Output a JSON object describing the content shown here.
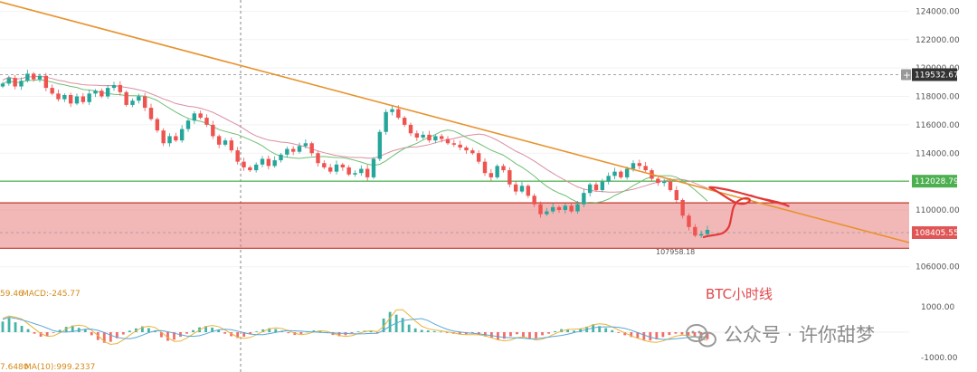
{
  "chart_data": {
    "type": "candlestick",
    "title": "BTC小时线",
    "watermark": "公众号 · 许你甜梦",
    "yaxis": {
      "ticks": [
        "124000.00",
        "122000.00",
        "120000.00",
        "118000.00",
        "116000.00",
        "114000.00",
        "110000.00",
        "106000.00"
      ],
      "tick_values": [
        124000,
        122000,
        120000,
        118000,
        116000,
        114000,
        110000,
        106000
      ],
      "range": [
        105600,
        124600
      ]
    },
    "price_tags": [
      {
        "label": "119532.67",
        "value": 119532.67,
        "color": "#333333"
      },
      {
        "label": "112028.79",
        "value": 112028.79,
        "color": "#4caf50"
      },
      {
        "label": "108405.55",
        "value": 108405.55,
        "color": "#e05656"
      }
    ],
    "low_label": "107958.18",
    "zone": {
      "top": 110500,
      "bottom": 107300,
      "color": "#e87b7b"
    },
    "support_line": 112028.79,
    "closes": [
      118900,
      119300,
      118700,
      119100,
      119600,
      119200,
      119450,
      118600,
      118200,
      117800,
      118100,
      117500,
      118000,
      117600,
      118200,
      118400,
      118000,
      118600,
      118800,
      118300,
      117400,
      117700,
      118000,
      117200,
      116400,
      115600,
      114700,
      115200,
      114900,
      115700,
      116300,
      116800,
      116500,
      116000,
      115200,
      114600,
      114900,
      114200,
      113400,
      113000,
      112800,
      113200,
      113600,
      113100,
      113500,
      113900,
      114300,
      114100,
      114500,
      114700,
      114000,
      113300,
      113000,
      112700,
      113200,
      113000,
      112500,
      112600,
      112900,
      112300,
      113600,
      115500,
      116900,
      117100,
      116500,
      116000,
      115400,
      115100,
      115300,
      114900,
      115200,
      115000,
      114700,
      114600,
      114400,
      114200,
      114000,
      113400,
      112600,
      112300,
      113100,
      112800,
      111800,
      111300,
      111700,
      111000,
      110400,
      109700,
      109900,
      110200,
      110000,
      110300,
      109900,
      110400,
      111200,
      111800,
      111400,
      112000,
      112400,
      112700,
      112300,
      112900,
      113300,
      113100,
      112800,
      112200,
      111900,
      112000,
      111400,
      110700,
      109600,
      108800,
      108200,
      108300,
      108600
    ]
  },
  "indicator": {
    "macd_label": "MACD:-245.77",
    "ma_label": "MA(10):999.2337",
    "left_fragment_top": "59.46",
    "left_fragment_bottom": "7.6480",
    "ticks": [
      "1000.00",
      "-1000.00"
    ],
    "tick_values": [
      1000,
      -1000
    ],
    "hist": [
      420,
      560,
      390,
      250,
      120,
      -60,
      -180,
      -140,
      -20,
      90,
      210,
      260,
      170,
      120,
      -120,
      -310,
      -420,
      -380,
      -240,
      -90,
      60,
      150,
      230,
      160,
      40,
      -200,
      -340,
      -300,
      -180,
      -60,
      80,
      190,
      240,
      180,
      90,
      -60,
      -160,
      -230,
      -180,
      -70,
      30,
      110,
      160,
      120,
      50,
      -40,
      -110,
      -70,
      20,
      70,
      40,
      -30,
      -110,
      -160,
      -120,
      -40,
      30,
      60,
      40,
      -50,
      540,
      800,
      690,
      560,
      300,
      150,
      90,
      70,
      40,
      20,
      -30,
      -60,
      -90,
      -80,
      -50,
      -110,
      -170,
      -230,
      -300,
      -260,
      -160,
      -80,
      -200,
      -280,
      -240,
      -120,
      -60,
      40,
      120,
      90,
      60,
      150,
      220,
      310,
      240,
      160,
      80,
      -30,
      -120,
      -190,
      -240,
      -310,
      -330,
      -280,
      -190,
      -110,
      -60,
      -90,
      -140,
      -200,
      -260,
      -280
    ]
  }
}
